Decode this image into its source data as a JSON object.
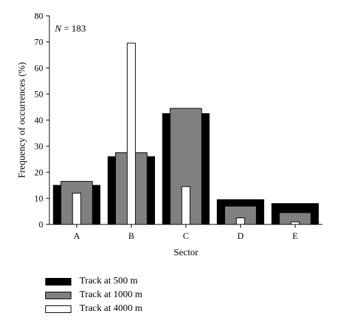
{
  "chart_data": {
    "type": "bar",
    "categories": [
      "A",
      "B",
      "C",
      "D",
      "E"
    ],
    "series": [
      {
        "name": "Track at 500 m",
        "values": [
          15,
          26,
          42.5,
          9.5,
          8
        ],
        "color": "#000000"
      },
      {
        "name": "Track at 1000 m",
        "values": [
          16.5,
          27.5,
          44.5,
          7,
          4.5
        ],
        "color": "#808080"
      },
      {
        "name": "Track at 4000 m",
        "values": [
          12,
          69.5,
          14.5,
          2.5,
          1
        ],
        "color": "#ffffff"
      }
    ],
    "xlabel": "Sector",
    "ylabel": "Frequency of occurrences (%)",
    "ylim": [
      0,
      80
    ],
    "yticks": [
      0,
      10,
      20,
      30,
      40,
      50,
      60,
      70,
      80
    ],
    "annotation": {
      "italic": "N",
      "rest": " = 183"
    },
    "grid": false,
    "legend_position": "bottom-left"
  }
}
